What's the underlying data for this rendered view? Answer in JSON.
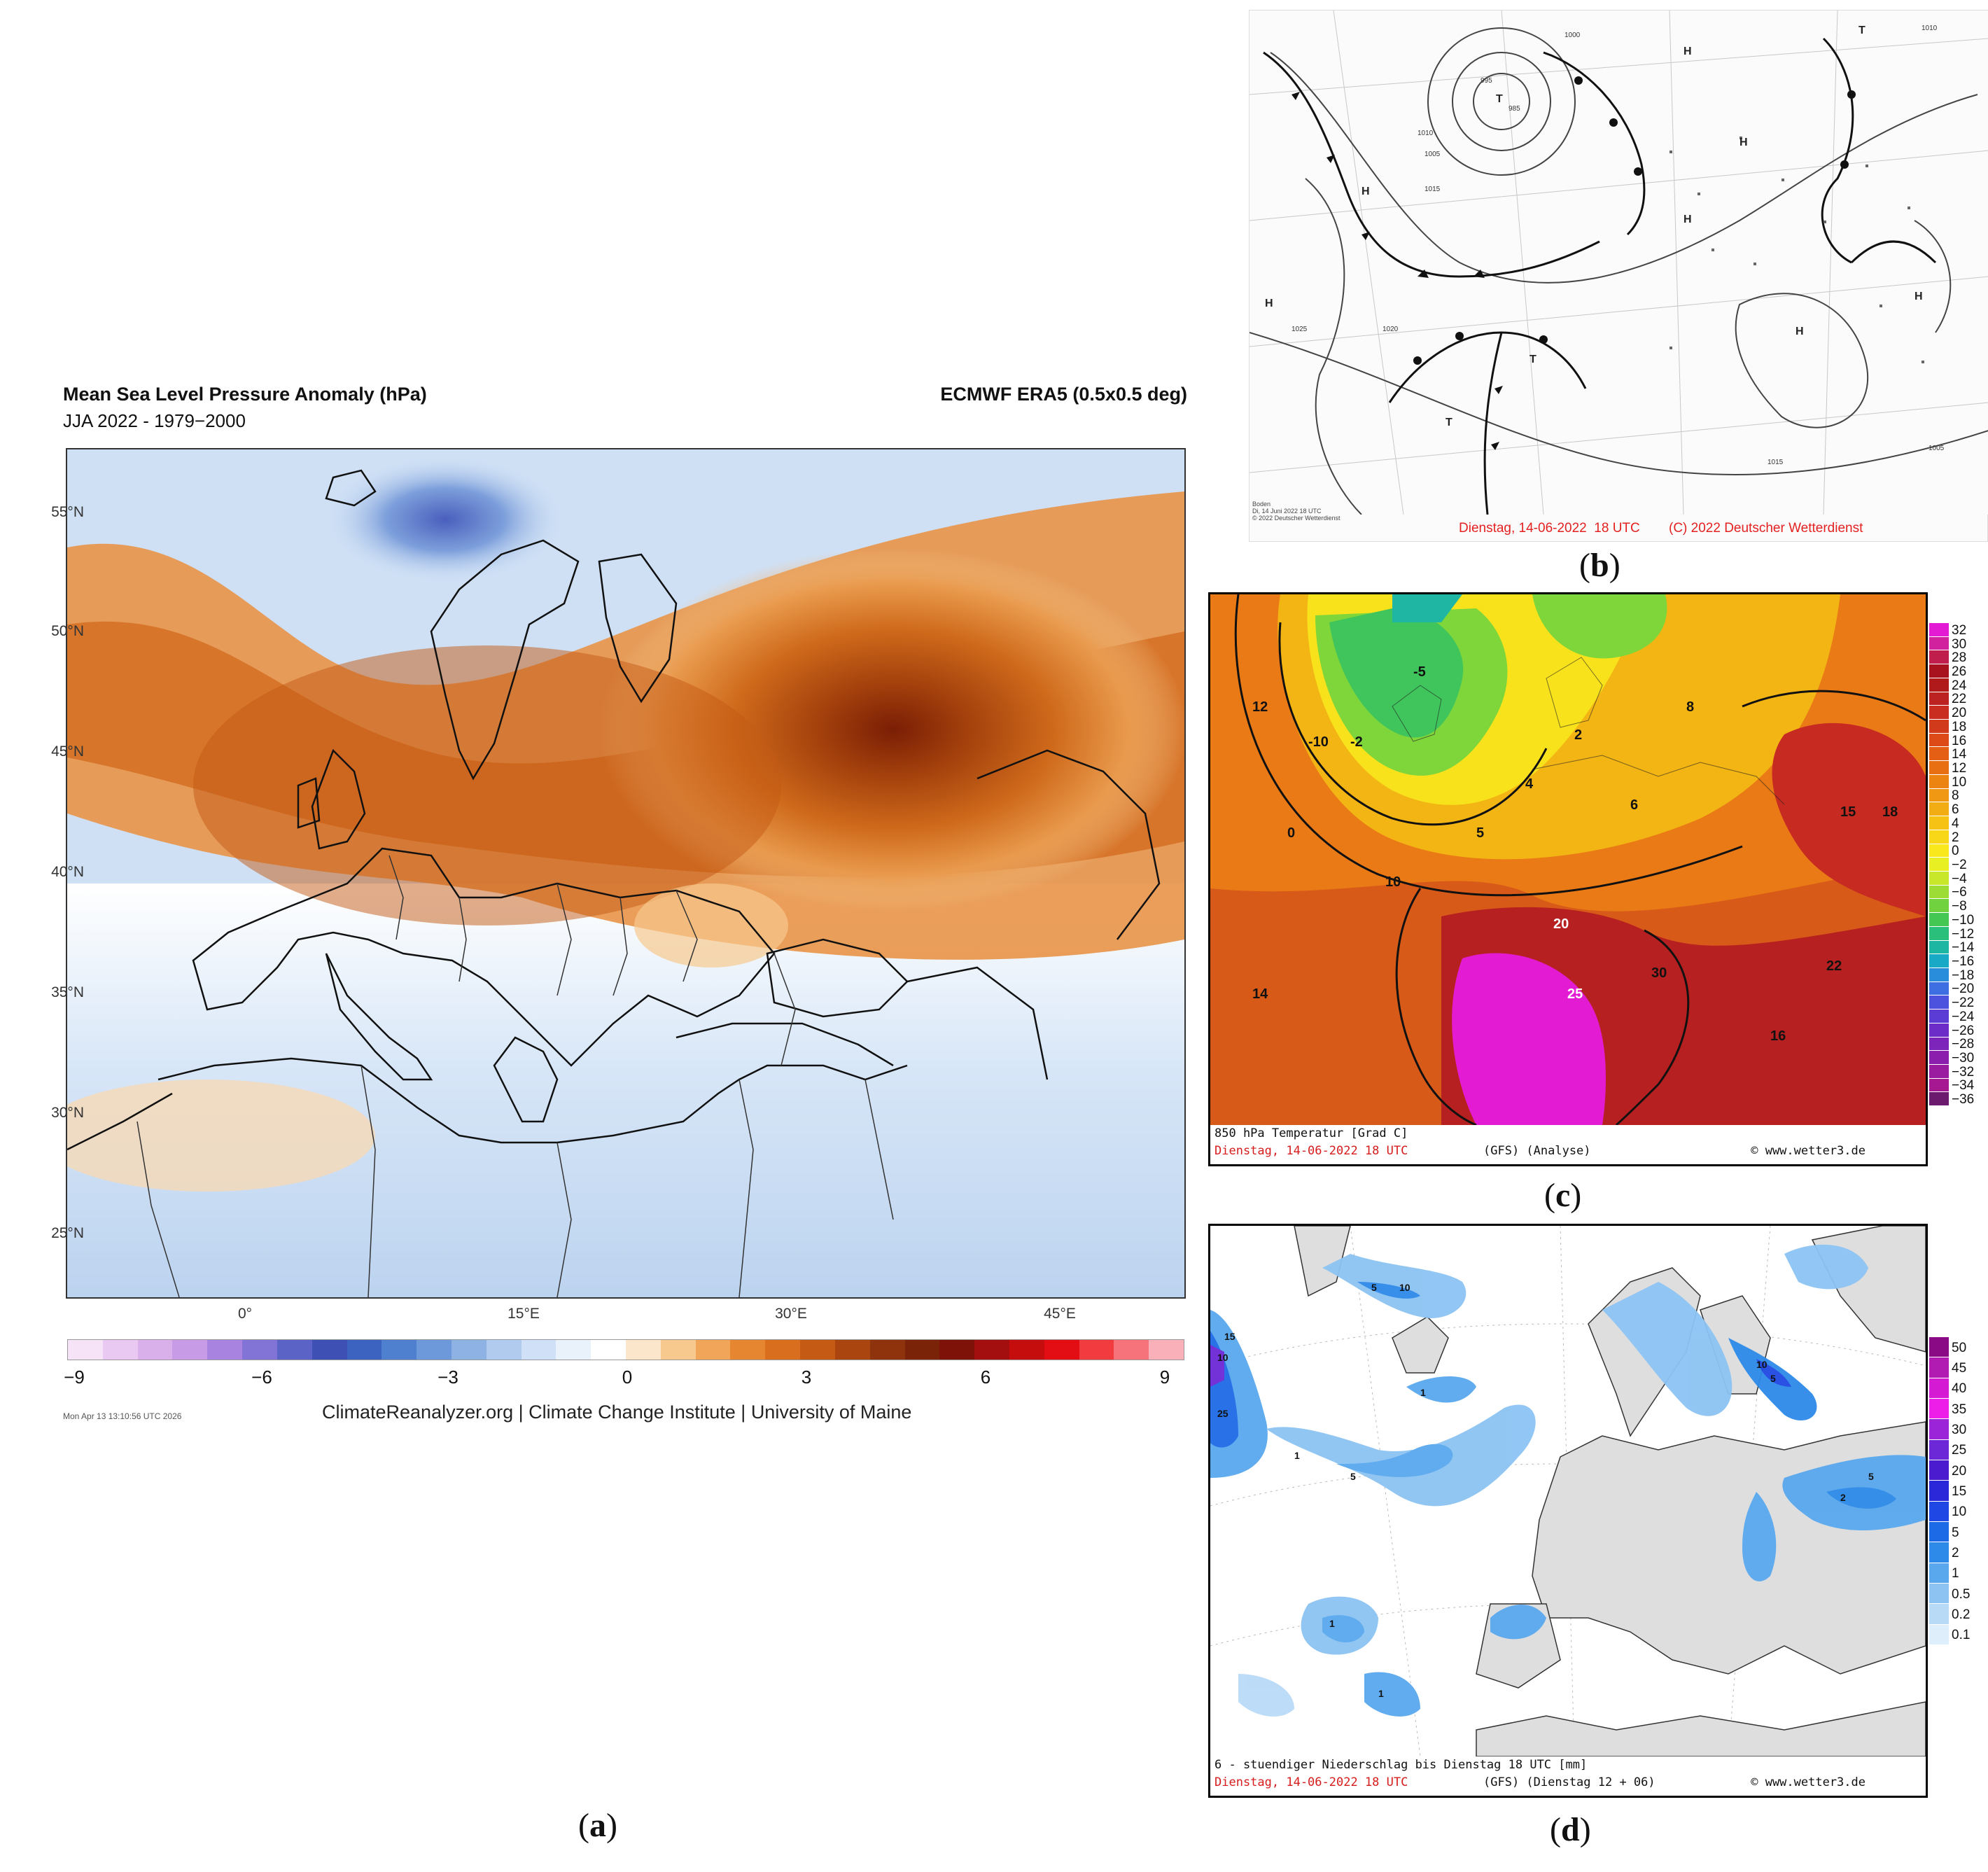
{
  "panel_a": {
    "title": "Mean Sea Level Pressure Anomaly (hPa)",
    "subtitle": "JJA 2022 - 1979−2000",
    "source": "ECMWF ERA5 (0.5x0.5 deg)",
    "lat_labels": [
      "55°N",
      "50°N",
      "45°N",
      "40°N",
      "35°N",
      "30°N",
      "25°N"
    ],
    "lon_labels": [
      "0°",
      "15°E",
      "30°E",
      "45°E"
    ],
    "colorbar_ticks": [
      "−9",
      "−6",
      "−3",
      "0",
      "3",
      "6",
      "9"
    ],
    "colorbar_colors": [
      "#f6e3f7",
      "#e9c9f1",
      "#dab0ea",
      "#c79be6",
      "#a884e0",
      "#8174d6",
      "#5c63c7",
      "#3e50b3",
      "#3b63bf",
      "#4f7fcf",
      "#6d98da",
      "#8eb2e4",
      "#b0cbee",
      "#d0e0f6",
      "#e9f1fb",
      "#ffffff",
      "#fbe6cc",
      "#f7c98f",
      "#f0a559",
      "#e68630",
      "#d96f1e",
      "#c45a14",
      "#aa4510",
      "#8f330c",
      "#7a2309",
      "#7f1208",
      "#a30e0e",
      "#c50d0d",
      "#e30d14",
      "#f23b3e",
      "#f7737b",
      "#fab0b8"
    ],
    "timestamp": "Mon Apr 13 13:10:56 UTC 2026",
    "credit": "ClimateReanalyzer.org | Climate Change Institute | University of Maine",
    "label_letter": "a"
  },
  "panel_b": {
    "footer_date": "Dienstag, 14-06-2022  18 UTC",
    "footer_credit": "(C) 2022 Deutscher Wetterdienst",
    "inset_line1": "Boden",
    "inset_line2": "Di, 14 Juni 2022 18 UTC",
    "inset_line3": "© 2022 Deutscher Wetterdienst",
    "symbols": [
      "H",
      "H",
      "H",
      "H",
      "T",
      "T",
      "T",
      "H",
      "H",
      "T",
      "H"
    ],
    "isobars": [
      "1010",
      "1005",
      "1015",
      "1020",
      "1025",
      "995",
      "985",
      "1000",
      "1010",
      "1015",
      "1005"
    ],
    "label_letter": "b"
  },
  "panel_c": {
    "caption_line1": "850 hPa Temperatur [Grad C]",
    "caption_date": "Dienstag, 14-06-2022  18 UTC",
    "caption_model": "(GFS)  (Analyse)",
    "caption_site": "© www.wetter3.de",
    "legend_ticks": [
      "32",
      "30",
      "28",
      "26",
      "24",
      "22",
      "20",
      "18",
      "16",
      "14",
      "12",
      "10",
      "8",
      "6",
      "4",
      "2",
      "0",
      "−2",
      "−4",
      "−6",
      "−8",
      "−10",
      "−12",
      "−14",
      "−16",
      "−18",
      "−20",
      "−22",
      "−24",
      "−26",
      "−28",
      "−30",
      "−32",
      "−34",
      "−36"
    ],
    "legend_colors": [
      "#e31bd3",
      "#d1219f",
      "#c01f4e",
      "#a8121f",
      "#b01a1a",
      "#bd2222",
      "#c92d20",
      "#d23a1c",
      "#dd4a18",
      "#e45e14",
      "#e86f12",
      "#ec8412",
      "#f09814",
      "#f3ad14",
      "#f6c314",
      "#f8d618",
      "#f9e81c",
      "#e8ef22",
      "#c8e62a",
      "#9cdc34",
      "#6fd23e",
      "#45c853",
      "#2bbf7c",
      "#1cb6a3",
      "#17a9c5",
      "#2a8ddb",
      "#3d6fe3",
      "#4d52de",
      "#5b3cd4",
      "#6c2cc8",
      "#7d24bb",
      "#8c1eae",
      "#9a1aa0",
      "#a51892",
      "#6b1a6e"
    ],
    "contour_labels": [
      "-10",
      "-5",
      "0",
      "5",
      "10",
      "15",
      "20",
      "25",
      "30",
      "-2",
      "2",
      "4",
      "6",
      "8",
      "12",
      "14",
      "16",
      "18",
      "22"
    ],
    "label_letter": "c"
  },
  "panel_d": {
    "caption_line1": "6 - stuendiger Niederschlag bis Dienstag 18 UTC [mm]",
    "caption_date": "Dienstag, 14-06-2022  18 UTC",
    "caption_model": "(GFS)  (Dienstag 12 + 06)",
    "caption_site": "© www.wetter3.de",
    "legend_ticks": [
      "50",
      "45",
      "40",
      "35",
      "30",
      "25",
      "20",
      "15",
      "10",
      "5",
      "2",
      "1",
      "0.5",
      "0.2",
      "0.1"
    ],
    "legend_colors": [
      "#8a0a85",
      "#b21bb2",
      "#d51ad3",
      "#ec1ee8",
      "#9b24d9",
      "#6c27d6",
      "#4b1bd0",
      "#2b28d9",
      "#1f47e3",
      "#1d6ae6",
      "#2d8ae9",
      "#59a8ee",
      "#8cc3f3",
      "#b9daf7",
      "#dfeefb"
    ],
    "precip_labels": [
      "1",
      "5",
      "10",
      "25",
      "1",
      "5",
      "10",
      "1",
      "2",
      "5",
      "10",
      "15",
      "1",
      "5"
    ],
    "label_letter": "d"
  }
}
